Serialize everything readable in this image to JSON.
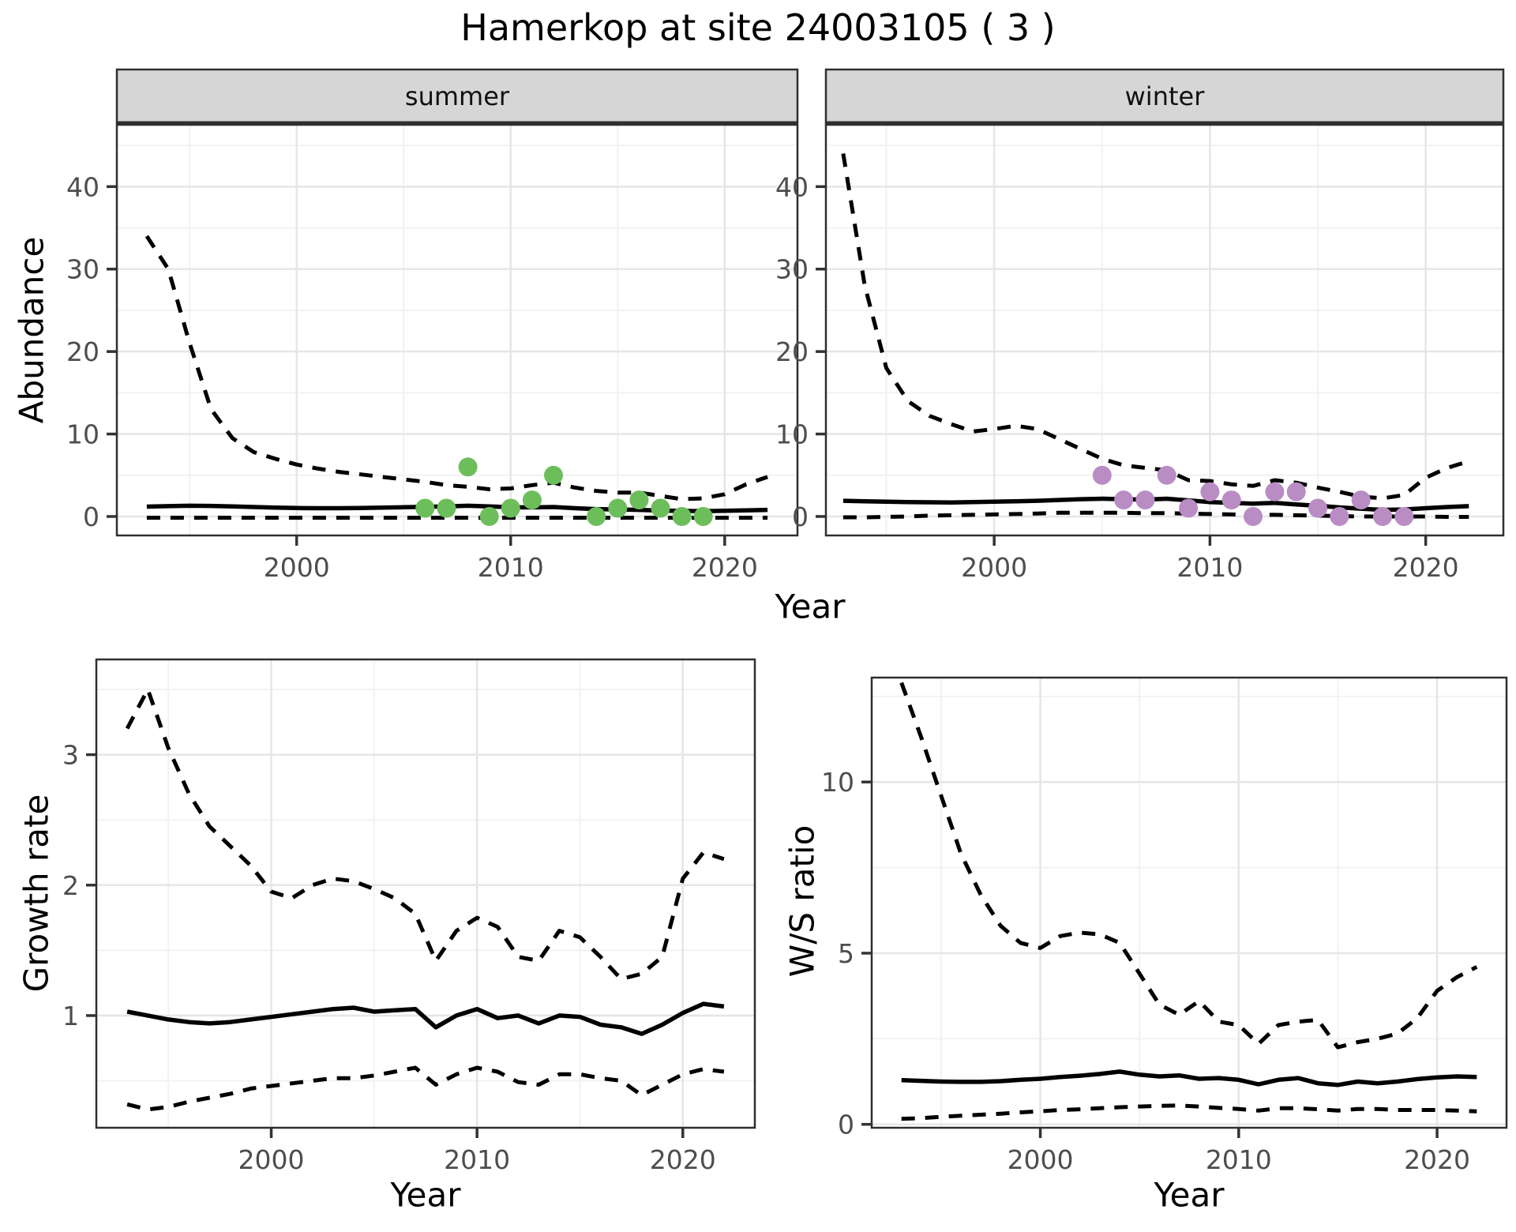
{
  "title": "Hamerkop at site 24003105 ( 3 )",
  "axis_titles": {
    "abundance": "Abundance",
    "growth_rate": "Growth rate",
    "ws_ratio": "W/S ratio",
    "year": "Year"
  },
  "facet_labels": {
    "summer": "summer",
    "winter": "winter"
  },
  "colors": {
    "summer_points": "#6cbe5a",
    "winter_points": "#b98cc4",
    "line": "#000000",
    "grid_major": "#e6e6e6",
    "grid_minor": "#f2f2f2",
    "panel_border": "#2f2f2f",
    "strip_bg": "#d6d6d6",
    "tick_text": "#4d4d4d",
    "tick_mark": "#333333"
  },
  "chart_data": [
    {
      "id": "abundance-summer",
      "type": "line",
      "facet": "summer",
      "xlabel": "Year",
      "ylabel": "Abundance",
      "x_years": [
        1993,
        1994,
        1995,
        1996,
        1997,
        1998,
        1999,
        2000,
        2001,
        2002,
        2003,
        2004,
        2005,
        2006,
        2007,
        2008,
        2009,
        2010,
        2011,
        2012,
        2013,
        2014,
        2015,
        2016,
        2017,
        2018,
        2019,
        2020,
        2021,
        2022
      ],
      "series": [
        {
          "name": "upper-ci",
          "style": "dashed",
          "values": [
            34,
            30,
            21,
            13,
            9.5,
            7.8,
            7.0,
            6.3,
            5.8,
            5.4,
            5.1,
            4.8,
            4.5,
            4.2,
            3.8,
            3.6,
            3.3,
            3.4,
            3.8,
            4.1,
            3.5,
            3.1,
            2.9,
            2.9,
            2.5,
            2.1,
            2.2,
            2.7,
            3.9,
            4.8
          ]
        },
        {
          "name": "mean",
          "style": "solid",
          "values": [
            1.2,
            1.25,
            1.3,
            1.28,
            1.22,
            1.15,
            1.08,
            1.02,
            1.0,
            1.0,
            1.02,
            1.08,
            1.12,
            1.18,
            1.22,
            1.3,
            1.22,
            1.12,
            1.1,
            1.15,
            1.0,
            0.9,
            0.85,
            0.8,
            0.72,
            0.68,
            0.65,
            0.7,
            0.75,
            0.8
          ]
        },
        {
          "name": "lower-ci",
          "style": "dashed",
          "values": [
            -0.15,
            -0.15,
            -0.15,
            -0.15,
            -0.15,
            -0.15,
            -0.15,
            -0.15,
            -0.15,
            -0.15,
            -0.15,
            -0.15,
            -0.15,
            -0.15,
            -0.15,
            -0.15,
            -0.15,
            -0.15,
            -0.15,
            -0.15,
            -0.15,
            -0.15,
            -0.15,
            -0.15,
            -0.15,
            -0.15,
            -0.15,
            -0.15,
            -0.15,
            -0.15
          ]
        }
      ],
      "observed_points": {
        "x": [
          2006,
          2007,
          2008,
          2009,
          2010,
          2011,
          2012,
          2014,
          2015,
          2016,
          2017,
          2018,
          2019
        ],
        "y": [
          1,
          1,
          6,
          0,
          1,
          2,
          5,
          0,
          1,
          2,
          1,
          0,
          0
        ],
        "color_key": "summer_points"
      },
      "xlim": [
        1991.6,
        2023.4
      ],
      "ylim": [
        -2.3,
        47.5
      ],
      "xticks": [
        2000,
        2010,
        2020
      ],
      "xticks_minor": [
        1995,
        2005,
        2015
      ],
      "yticks": [
        0,
        10,
        20,
        30,
        40
      ],
      "yticks_minor": [
        5,
        15,
        25,
        35,
        45
      ]
    },
    {
      "id": "abundance-winter",
      "type": "line",
      "facet": "winter",
      "xlabel": "Year",
      "ylabel": "Abundance",
      "x_years": [
        1993,
        1994,
        1995,
        1996,
        1997,
        1998,
        1999,
        2000,
        2001,
        2002,
        2003,
        2004,
        2005,
        2006,
        2007,
        2008,
        2009,
        2010,
        2011,
        2012,
        2013,
        2014,
        2015,
        2016,
        2017,
        2018,
        2019,
        2020,
        2021,
        2022
      ],
      "series": [
        {
          "name": "upper-ci",
          "style": "dashed",
          "values": [
            44,
            28,
            18,
            14,
            12.2,
            11.2,
            10.3,
            10.6,
            11.0,
            10.6,
            9.4,
            8.2,
            7.0,
            6.2,
            5.9,
            5.6,
            4.4,
            4.3,
            3.9,
            3.7,
            4.4,
            4.1,
            3.5,
            3.0,
            2.4,
            2.2,
            2.6,
            4.7,
            5.9,
            6.7
          ]
        },
        {
          "name": "mean",
          "style": "solid",
          "values": [
            1.9,
            1.85,
            1.8,
            1.75,
            1.72,
            1.7,
            1.75,
            1.8,
            1.85,
            1.9,
            2.0,
            2.1,
            2.15,
            2.1,
            2.05,
            2.15,
            1.95,
            1.75,
            1.65,
            1.55,
            1.65,
            1.45,
            1.3,
            1.1,
            0.95,
            0.8,
            0.85,
            1.0,
            1.15,
            1.25
          ]
        },
        {
          "name": "lower-ci",
          "style": "dashed",
          "values": [
            -0.1,
            -0.1,
            -0.05,
            0.0,
            0.1,
            0.15,
            0.2,
            0.25,
            0.3,
            0.35,
            0.45,
            0.45,
            0.45,
            0.45,
            0.4,
            0.4,
            0.35,
            0.3,
            0.25,
            0.2,
            0.2,
            0.15,
            0.1,
            0.05,
            0.0,
            0.0,
            0.0,
            0.0,
            -0.05,
            -0.05
          ]
        }
      ],
      "observed_points": {
        "x": [
          2005,
          2006,
          2007,
          2008,
          2009,
          2010,
          2011,
          2012,
          2013,
          2014,
          2015,
          2016,
          2017,
          2018,
          2019
        ],
        "y": [
          5,
          2,
          2,
          5,
          1,
          3,
          2,
          0,
          3,
          3,
          1,
          0,
          2,
          0,
          0
        ],
        "color_key": "winter_points"
      },
      "xlim": [
        1992.2,
        2023.6
      ],
      "ylim": [
        -2.3,
        47.5
      ],
      "xticks": [
        2000,
        2010,
        2020
      ],
      "xticks_minor": [
        1995,
        2005,
        2015
      ],
      "yticks": [
        0,
        10,
        20,
        30,
        40
      ],
      "yticks_minor": [
        5,
        15,
        25,
        35,
        45
      ]
    },
    {
      "id": "growth-rate",
      "type": "line",
      "facet": null,
      "xlabel": "Year",
      "ylabel": "Growth rate",
      "x_years": [
        1993,
        1994,
        1995,
        1996,
        1997,
        1998,
        1999,
        2000,
        2001,
        2002,
        2003,
        2004,
        2005,
        2006,
        2007,
        2008,
        2009,
        2010,
        2011,
        2012,
        2013,
        2014,
        2015,
        2016,
        2017,
        2018,
        2019,
        2020,
        2021,
        2022
      ],
      "series": [
        {
          "name": "upper-ci",
          "style": "dashed",
          "values": [
            3.2,
            3.5,
            3.05,
            2.7,
            2.45,
            2.3,
            2.15,
            1.95,
            1.9,
            2.0,
            2.05,
            2.03,
            1.97,
            1.9,
            1.78,
            1.42,
            1.65,
            1.75,
            1.68,
            1.45,
            1.42,
            1.65,
            1.6,
            1.45,
            1.28,
            1.32,
            1.45,
            2.05,
            2.25,
            2.2
          ]
        },
        {
          "name": "mean",
          "style": "solid",
          "values": [
            1.03,
            1.0,
            0.97,
            0.95,
            0.94,
            0.95,
            0.97,
            0.99,
            1.01,
            1.03,
            1.05,
            1.06,
            1.03,
            1.04,
            1.05,
            0.91,
            1.0,
            1.05,
            0.98,
            1.0,
            0.94,
            1.0,
            0.99,
            0.93,
            0.91,
            0.86,
            0.93,
            1.02,
            1.09,
            1.07
          ]
        },
        {
          "name": "lower-ci",
          "style": "dashed",
          "values": [
            0.32,
            0.28,
            0.3,
            0.34,
            0.37,
            0.4,
            0.44,
            0.46,
            0.48,
            0.5,
            0.52,
            0.52,
            0.54,
            0.57,
            0.6,
            0.47,
            0.55,
            0.6,
            0.57,
            0.49,
            0.47,
            0.55,
            0.55,
            0.52,
            0.5,
            0.39,
            0.47,
            0.55,
            0.59,
            0.57
          ]
        }
      ],
      "observed_points": null,
      "xlim": [
        1991.5,
        2023.5
      ],
      "ylim": [
        0.14,
        3.73
      ],
      "xticks": [
        2000,
        2010,
        2020
      ],
      "xticks_minor": [
        1995,
        2005,
        2015
      ],
      "yticks": [
        1,
        2,
        3
      ],
      "yticks_minor": [
        0.5,
        1.5,
        2.5,
        3.5
      ]
    },
    {
      "id": "ws-ratio",
      "type": "line",
      "facet": null,
      "xlabel": "Year",
      "ylabel": "W/S ratio",
      "x_years": [
        1993,
        1994,
        1995,
        1996,
        1997,
        1998,
        1999,
        2000,
        2001,
        2002,
        2003,
        2004,
        2005,
        2006,
        2007,
        2008,
        2009,
        2010,
        2011,
        2012,
        2013,
        2014,
        2015,
        2016,
        2017,
        2018,
        2019,
        2020,
        2021,
        2022
      ],
      "series": [
        {
          "name": "upper-ci",
          "style": "dashed",
          "values": [
            12.9,
            11.3,
            9.6,
            7.9,
            6.7,
            5.8,
            5.3,
            5.15,
            5.5,
            5.6,
            5.55,
            5.3,
            4.4,
            3.5,
            3.2,
            3.6,
            3.0,
            2.9,
            2.35,
            2.9,
            3.0,
            3.05,
            2.25,
            2.4,
            2.5,
            2.65,
            3.1,
            3.9,
            4.3,
            4.6
          ]
        },
        {
          "name": "mean",
          "style": "solid",
          "values": [
            1.29,
            1.27,
            1.25,
            1.24,
            1.24,
            1.26,
            1.3,
            1.33,
            1.38,
            1.42,
            1.47,
            1.54,
            1.45,
            1.4,
            1.43,
            1.33,
            1.35,
            1.3,
            1.17,
            1.3,
            1.35,
            1.2,
            1.15,
            1.25,
            1.2,
            1.25,
            1.32,
            1.37,
            1.4,
            1.38
          ]
        },
        {
          "name": "lower-ci",
          "style": "dashed",
          "values": [
            0.16,
            0.18,
            0.22,
            0.25,
            0.28,
            0.31,
            0.35,
            0.38,
            0.42,
            0.44,
            0.47,
            0.5,
            0.52,
            0.54,
            0.55,
            0.52,
            0.48,
            0.45,
            0.4,
            0.47,
            0.47,
            0.44,
            0.4,
            0.45,
            0.45,
            0.42,
            0.42,
            0.42,
            0.4,
            0.38
          ]
        }
      ],
      "observed_points": null,
      "xlim": [
        1991.5,
        2023.5
      ],
      "ylim": [
        -0.1,
        13.05
      ],
      "xticks": [
        2000,
        2010,
        2020
      ],
      "xticks_minor": [
        1995,
        2005,
        2015
      ],
      "yticks": [
        0,
        5,
        10
      ],
      "yticks_minor": [
        2.5,
        7.5,
        12.5
      ]
    }
  ]
}
